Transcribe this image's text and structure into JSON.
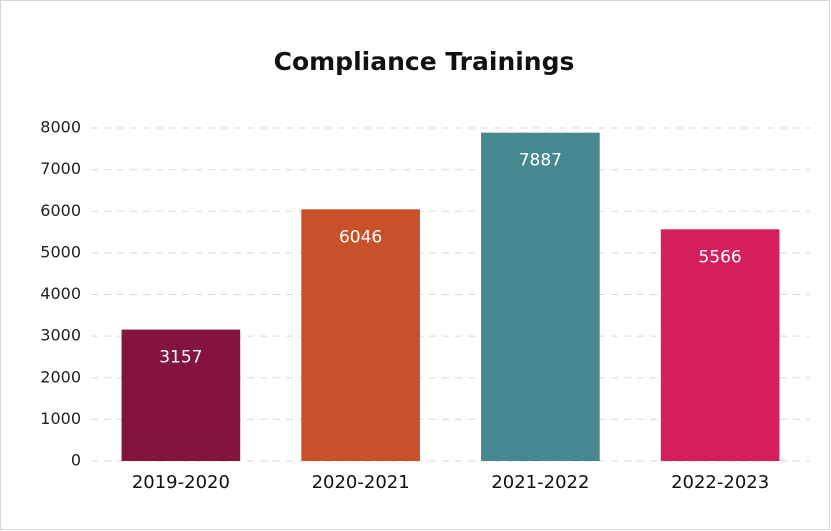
{
  "chart_data": {
    "type": "bar",
    "title": "Compliance Trainings",
    "categories": [
      "2019-2020",
      "2020-2021",
      "2021-2022",
      "2022-2023"
    ],
    "values": [
      3157,
      6046,
      7887,
      5566
    ],
    "colors": [
      "#82143e",
      "#c9512a",
      "#468890",
      "#d41f5a"
    ],
    "ylim": [
      0,
      8000
    ],
    "yticks": [
      0,
      1000,
      2000,
      3000,
      4000,
      5000,
      6000,
      7000,
      8000
    ],
    "grid": true
  }
}
